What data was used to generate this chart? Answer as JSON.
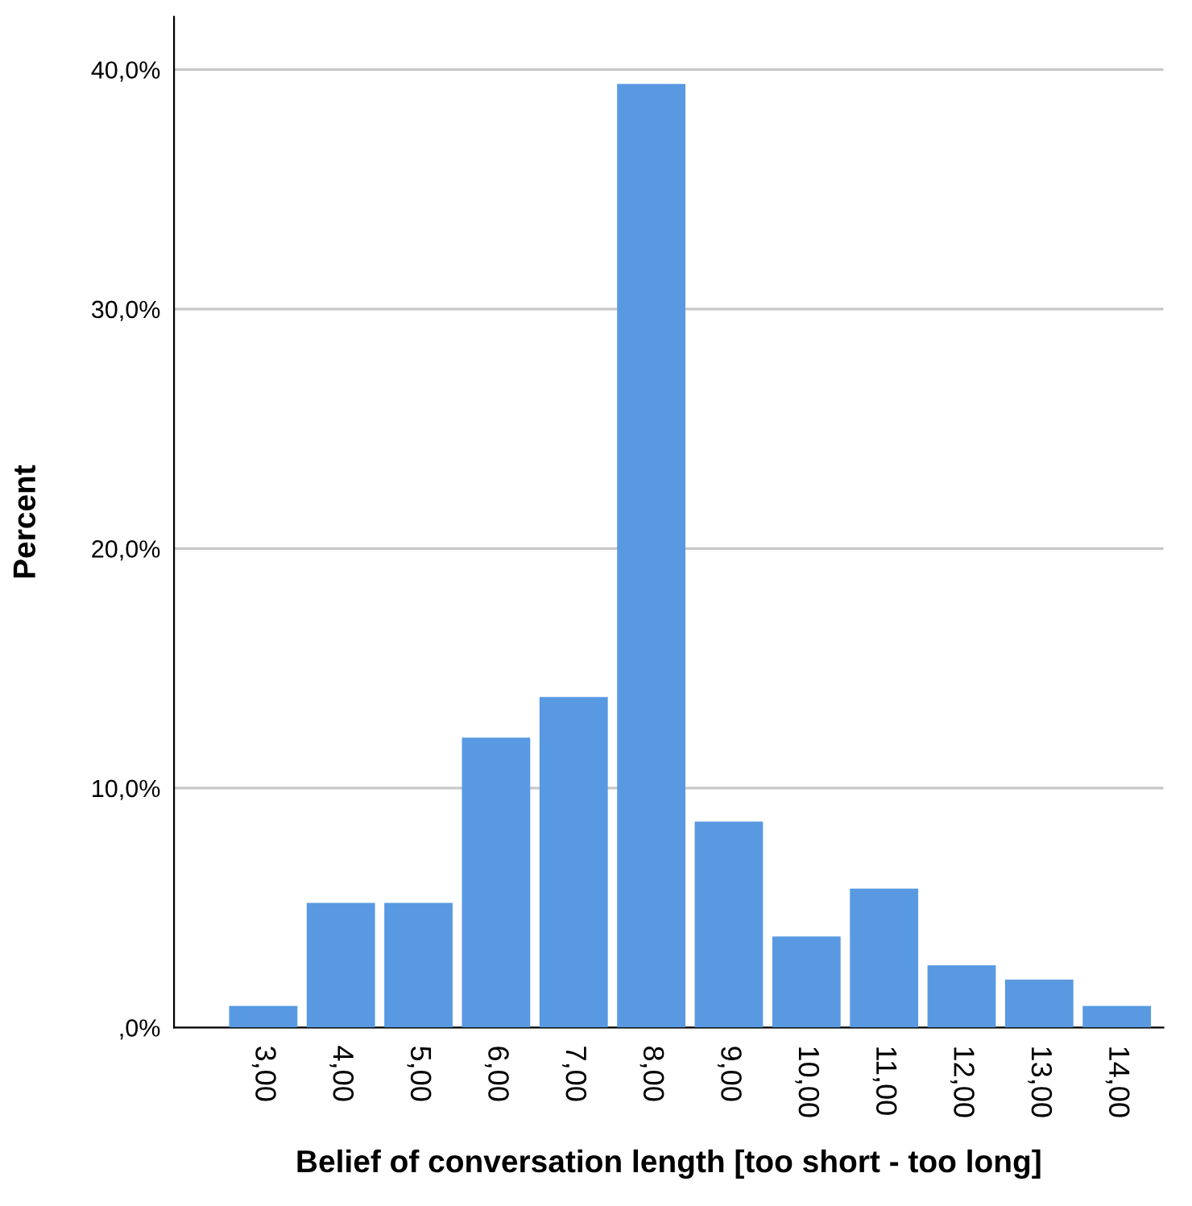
{
  "chart_data": {
    "type": "bar",
    "xlabel": "Belief of conversation length [too short - too long]",
    "ylabel": "Percent",
    "categories": [
      "3,00",
      "4,00",
      "5,00",
      "6,00",
      "7,00",
      "8,00",
      "9,00",
      "10,00",
      "11,00",
      "12,00",
      "13,00",
      "14,00"
    ],
    "values": [
      0.9,
      5.2,
      5.2,
      12.1,
      13.8,
      39.4,
      8.6,
      3.8,
      5.8,
      2.6,
      2.0,
      0.9
    ],
    "color": "#5899e2",
    "ylim": [
      0,
      42.2
    ],
    "yticks": [
      {
        "value": 0,
        "label": ",0%"
      },
      {
        "value": 10,
        "label": "10,0%"
      },
      {
        "value": 20,
        "label": "20,0%"
      },
      {
        "value": 30,
        "label": "30,0%"
      },
      {
        "value": 40,
        "label": "40,0%"
      }
    ],
    "grid": "y"
  }
}
